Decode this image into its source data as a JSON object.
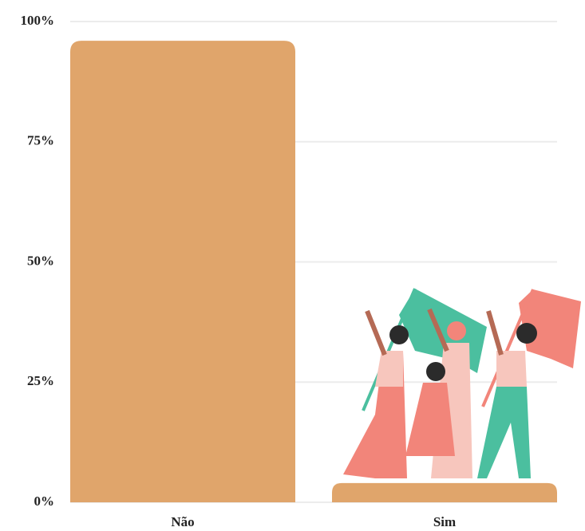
{
  "chart_data": {
    "type": "bar",
    "categories": [
      "Não",
      "Sim"
    ],
    "values": [
      96,
      4
    ],
    "color": "#e0a56b",
    "ylim": [
      0,
      100
    ],
    "yticks": [
      {
        "value": 0,
        "label": "0%"
      },
      {
        "value": 25,
        "label": "25%"
      },
      {
        "value": 50,
        "label": "50%"
      },
      {
        "value": 75,
        "label": "75%"
      },
      {
        "value": 100,
        "label": "100%"
      }
    ],
    "grid": true
  }
}
